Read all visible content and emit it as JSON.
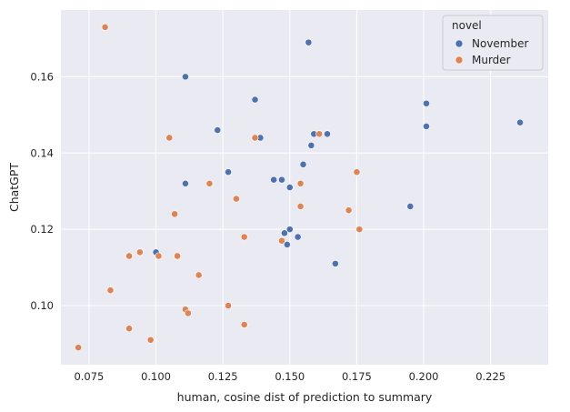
{
  "chart_data": {
    "type": "scatter",
    "xlabel": "human, cosine dist of prediction to summary",
    "ylabel": "ChatGPT",
    "xlim": [
      0.0645,
      0.2465
    ],
    "ylim": [
      0.0845,
      0.1775
    ],
    "xticks": [
      0.075,
      0.1,
      0.125,
      0.15,
      0.175,
      0.2,
      0.225
    ],
    "xtick_labels": [
      "0.075",
      "0.100",
      "0.125",
      "0.150",
      "0.175",
      "0.200",
      "0.225"
    ],
    "yticks": [
      0.1,
      0.12,
      0.14,
      0.16
    ],
    "ytick_labels": [
      "0.10",
      "0.12",
      "0.14",
      "0.16"
    ],
    "grid": true,
    "legend": {
      "title": "novel",
      "placement": "top-right"
    },
    "series": [
      {
        "name": "November",
        "color": "#4c72b0",
        "points": [
          [
            0.157,
            0.169
          ],
          [
            0.111,
            0.16
          ],
          [
            0.137,
            0.154
          ],
          [
            0.201,
            0.153
          ],
          [
            0.236,
            0.148
          ],
          [
            0.123,
            0.146
          ],
          [
            0.201,
            0.147
          ],
          [
            0.159,
            0.145
          ],
          [
            0.164,
            0.145
          ],
          [
            0.139,
            0.144
          ],
          [
            0.158,
            0.142
          ],
          [
            0.155,
            0.137
          ],
          [
            0.127,
            0.135
          ],
          [
            0.144,
            0.133
          ],
          [
            0.147,
            0.133
          ],
          [
            0.111,
            0.132
          ],
          [
            0.15,
            0.131
          ],
          [
            0.195,
            0.126
          ],
          [
            0.15,
            0.12
          ],
          [
            0.148,
            0.119
          ],
          [
            0.153,
            0.118
          ],
          [
            0.149,
            0.116
          ],
          [
            0.167,
            0.111
          ],
          [
            0.1,
            0.114
          ]
        ]
      },
      {
        "name": "Murder",
        "color": "#dd8452",
        "points": [
          [
            0.081,
            0.173
          ],
          [
            0.105,
            0.144
          ],
          [
            0.137,
            0.144
          ],
          [
            0.161,
            0.145
          ],
          [
            0.175,
            0.135
          ],
          [
            0.12,
            0.132
          ],
          [
            0.154,
            0.132
          ],
          [
            0.13,
            0.128
          ],
          [
            0.154,
            0.126
          ],
          [
            0.172,
            0.125
          ],
          [
            0.107,
            0.124
          ],
          [
            0.176,
            0.12
          ],
          [
            0.133,
            0.118
          ],
          [
            0.147,
            0.117
          ],
          [
            0.094,
            0.114
          ],
          [
            0.09,
            0.113
          ],
          [
            0.101,
            0.113
          ],
          [
            0.108,
            0.113
          ],
          [
            0.116,
            0.108
          ],
          [
            0.083,
            0.104
          ],
          [
            0.127,
            0.1
          ],
          [
            0.111,
            0.099
          ],
          [
            0.112,
            0.098
          ],
          [
            0.133,
            0.095
          ],
          [
            0.09,
            0.094
          ],
          [
            0.098,
            0.091
          ],
          [
            0.071,
            0.089
          ]
        ]
      }
    ]
  }
}
